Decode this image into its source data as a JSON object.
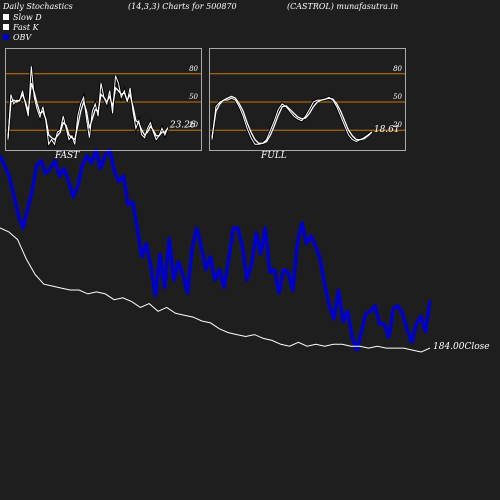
{
  "header": {
    "title": "Daily Stochastics",
    "params": "(14,3,3) Charts for 500870",
    "symbol": "(CASTROL) munafasutra.in"
  },
  "legend": [
    {
      "label": "Slow  D",
      "color": "#ffffff"
    },
    {
      "label": "Fast K",
      "color": "#ffffff"
    },
    {
      "label": "OBV",
      "color": "#0000cc"
    }
  ],
  "colors": {
    "background": "#1e1e1e",
    "obv": "#0000cc",
    "close": "#ffffff",
    "level_line": "#c87800",
    "panel_border": "#aaaaaa"
  },
  "chart_data": [
    {
      "type": "line",
      "title": "FAST",
      "ylim": [
        0,
        100
      ],
      "levels": [
        20,
        50,
        80
      ],
      "level_labels": [
        "20",
        "50",
        "80"
      ],
      "last_value_label": "23.26",
      "series": [
        {
          "values": [
            10,
            58,
            48,
            52,
            51,
            62,
            48,
            35,
            88,
            55,
            42,
            34,
            45,
            30,
            5,
            10,
            5,
            18,
            20,
            35,
            22,
            10,
            14,
            5,
            35,
            48,
            55,
            32,
            12,
            40,
            48,
            35,
            70,
            55,
            48,
            62,
            38,
            78,
            70,
            55,
            62,
            50,
            65,
            40,
            22,
            30,
            15,
            12,
            22,
            28,
            18,
            10,
            14,
            22,
            15,
            23
          ]
        },
        {
          "values": [
            12,
            50,
            52,
            50,
            52,
            58,
            50,
            40,
            70,
            60,
            48,
            38,
            40,
            32,
            15,
            12,
            10,
            14,
            18,
            28,
            25,
            15,
            12,
            10,
            25,
            40,
            50,
            40,
            22,
            32,
            42,
            40,
            58,
            55,
            50,
            56,
            45,
            65,
            62,
            58,
            60,
            52,
            58,
            45,
            30,
            28,
            20,
            15,
            18,
            24,
            20,
            14,
            14,
            18,
            18,
            22
          ]
        }
      ]
    },
    {
      "type": "line",
      "title": "FULL",
      "ylim": [
        0,
        100
      ],
      "levels": [
        20,
        50,
        80
      ],
      "level_labels": [
        "20",
        "50",
        "80"
      ],
      "last_value_label": "18.61",
      "series": [
        {
          "values": [
            10,
            45,
            50,
            52,
            52,
            54,
            52,
            45,
            35,
            22,
            12,
            5,
            5,
            6,
            10,
            20,
            30,
            42,
            48,
            45,
            40,
            35,
            32,
            30,
            35,
            42,
            50,
            52,
            52,
            53,
            55,
            52,
            45,
            35,
            25,
            15,
            10,
            8,
            10,
            12,
            15,
            18
          ]
        },
        {
          "values": [
            12,
            40,
            48,
            52,
            54,
            56,
            54,
            48,
            40,
            28,
            18,
            10,
            6,
            6,
            8,
            15,
            25,
            36,
            45,
            46,
            42,
            38,
            34,
            32,
            33,
            38,
            45,
            50,
            52,
            53,
            54,
            53,
            48,
            40,
            30,
            20,
            14,
            10,
            10,
            11,
            14,
            18
          ]
        }
      ]
    },
    {
      "type": "line",
      "title": "",
      "last_value_label": "184.00Close",
      "series": [
        {
          "name": "OBV",
          "values": [
            -20,
            -40,
            -60,
            -95,
            -135,
            -160,
            -125,
            -90,
            -40,
            -30,
            -55,
            -45,
            -30,
            -60,
            -45,
            -70,
            -100,
            -80,
            -40,
            -20,
            -35,
            -10,
            -45,
            -20,
            -10,
            -50,
            -70,
            -60,
            -115,
            -110,
            -160,
            -215,
            -190,
            -235,
            -290,
            -210,
            -275,
            -180,
            -260,
            -225,
            -250,
            -285,
            -200,
            -160,
            -195,
            -240,
            -215,
            -260,
            -240,
            -275,
            -220,
            -160,
            -160,
            -195,
            -260,
            -230,
            -170,
            -210,
            -160,
            -245,
            -240,
            -285,
            -240,
            -245,
            -280,
            -190,
            -150,
            -190,
            -175,
            -195,
            -220,
            -270,
            -310,
            -335,
            -280,
            -340,
            -320,
            -370,
            -395,
            -360,
            -325,
            -320,
            -310,
            -345,
            -345,
            -370,
            -315,
            -310,
            -325,
            -355,
            -380,
            -345,
            -330,
            -360,
            -300
          ]
        },
        {
          "name": "Close",
          "values": [
            246,
            244,
            240,
            230,
            222,
            217,
            216,
            215,
            214,
            214,
            212,
            213,
            212,
            209,
            210,
            208,
            205,
            207,
            203,
            205,
            202,
            201,
            200,
            198,
            197,
            194,
            192,
            191,
            190,
            191,
            189,
            188,
            186,
            185,
            187,
            185,
            186,
            185,
            186,
            186,
            185,
            185,
            184,
            185,
            184,
            184,
            184,
            183,
            182,
            184
          ]
        }
      ]
    }
  ],
  "footer": ""
}
